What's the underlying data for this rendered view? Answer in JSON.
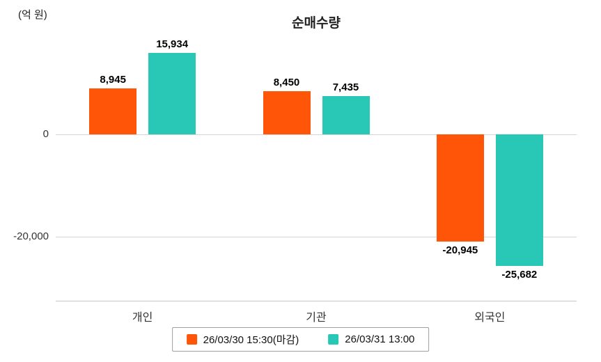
{
  "chart_data": {
    "type": "bar",
    "title": "순매수량",
    "unit_label": "(억 원)",
    "categories": [
      "개인",
      "기관",
      "외국인"
    ],
    "series": [
      {
        "name": "26/03/30 15:30(마감)",
        "color": "#ff5509",
        "values": [
          8945,
          8450,
          -20945
        ],
        "value_labels": [
          "8,945",
          "8,450",
          "-20,945"
        ]
      },
      {
        "name": "26/03/31 13:00",
        "color": "#29c7b6",
        "values": [
          15934,
          7435,
          -25682
        ],
        "value_labels": [
          "15,934",
          "7,435",
          "-25,682"
        ]
      }
    ],
    "y_ticks": [
      {
        "value": 0,
        "label": "0"
      },
      {
        "value": -20000,
        "label": "-20,000"
      }
    ],
    "ylim": [
      -30000,
      20000
    ],
    "grid": true,
    "legend_position": "bottom"
  }
}
